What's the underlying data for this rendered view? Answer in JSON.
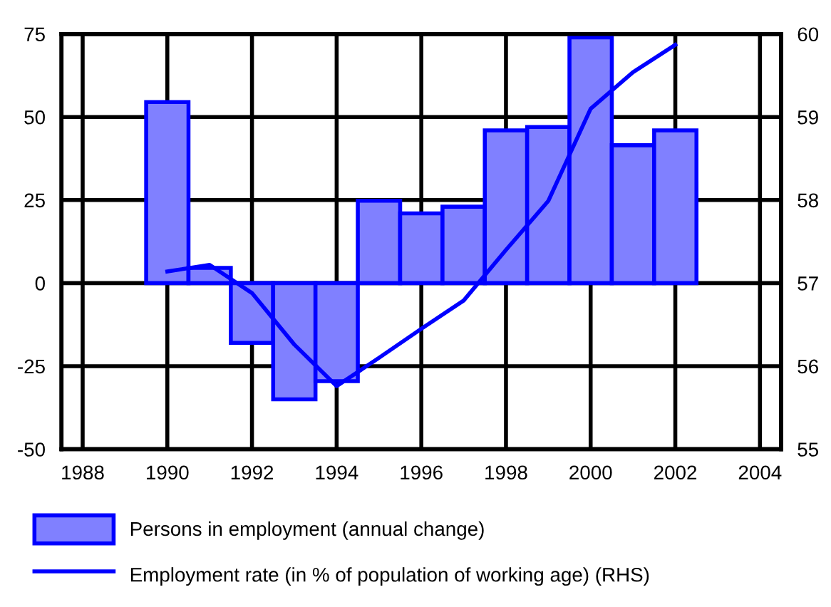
{
  "chart_data": {
    "type": "bar",
    "x": [
      1990,
      1991,
      1992,
      1993,
      1994,
      1995,
      1996,
      1997,
      1998,
      1999,
      2000,
      2001,
      2002
    ],
    "series": [
      {
        "name": "Persons in employment (annual change)",
        "color": "#8080ff",
        "values": [
          54.5,
          4.6,
          -18,
          -35,
          -29.5,
          24.8,
          21,
          23,
          46,
          47,
          74,
          41.5,
          46
        ]
      },
      {
        "name": "Employment rate (in % of population of working age) (RHS)",
        "type": "line",
        "axis": "y2",
        "color": "#0000ff",
        "values": [
          57.14,
          57.22,
          56.88,
          56.26,
          55.76,
          56.1,
          56.45,
          56.79,
          57.4,
          57.99,
          59.1,
          59.54,
          59.87
        ]
      }
    ],
    "xlim": [
      1987.5,
      2004.5
    ],
    "xticks": [
      1988,
      1990,
      1992,
      1994,
      1996,
      1998,
      2000,
      2002,
      2004
    ],
    "ylim": [
      -50,
      75
    ],
    "yticks": [
      -50,
      -25,
      0,
      25,
      50,
      75
    ],
    "y2lim": [
      55,
      60
    ],
    "y2ticks": [
      55,
      56,
      57,
      58,
      59,
      60
    ],
    "grid": true,
    "legend": "bottom",
    "marker": "none",
    "line_style": "solid"
  }
}
